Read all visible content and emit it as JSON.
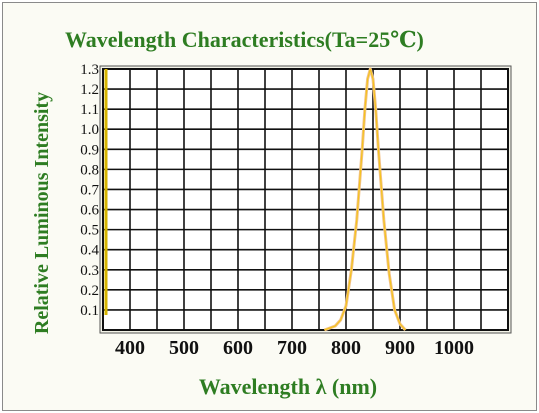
{
  "chart_data": {
    "type": "line",
    "title": "Wavelength Characteristics(Ta=25℃)",
    "xlabel": "Wavelength λ (nm)",
    "ylabel": "Relative Luminous Intensity",
    "x_ticks": [
      400,
      500,
      600,
      700,
      800,
      900,
      1000
    ],
    "y_ticks": [
      0.1,
      0.2,
      0.3,
      0.4,
      0.5,
      0.6,
      0.7,
      0.8,
      0.9,
      1.0,
      1.1,
      1.2,
      1.3
    ],
    "y_tick_labels": [
      "0.1",
      "0.2",
      "0.3",
      "0.4",
      "0.5",
      "0.6",
      "0.7",
      "0.8",
      "0.9",
      "1.0",
      "1.1",
      "1.2",
      "1.3"
    ],
    "xlim": [
      350,
      1100
    ],
    "ylim": [
      0,
      1.3
    ],
    "grid": true,
    "series": [
      {
        "x": [
          760,
          780,
          790,
          800,
          810,
          820,
          830,
          835,
          840,
          845,
          850,
          855,
          860,
          870,
          880,
          890,
          900,
          910
        ],
        "y": [
          0.0,
          0.02,
          0.05,
          0.12,
          0.3,
          0.55,
          0.9,
          1.1,
          1.25,
          1.3,
          1.25,
          1.1,
          0.9,
          0.55,
          0.28,
          0.1,
          0.03,
          0.0
        ]
      }
    ],
    "colors": {
      "text": "#2e7d22",
      "grid": "#111111",
      "curve_outer": "#f2c28a",
      "curve_peak": "#f5c400",
      "left_axis_marker": "#d6b400"
    }
  }
}
